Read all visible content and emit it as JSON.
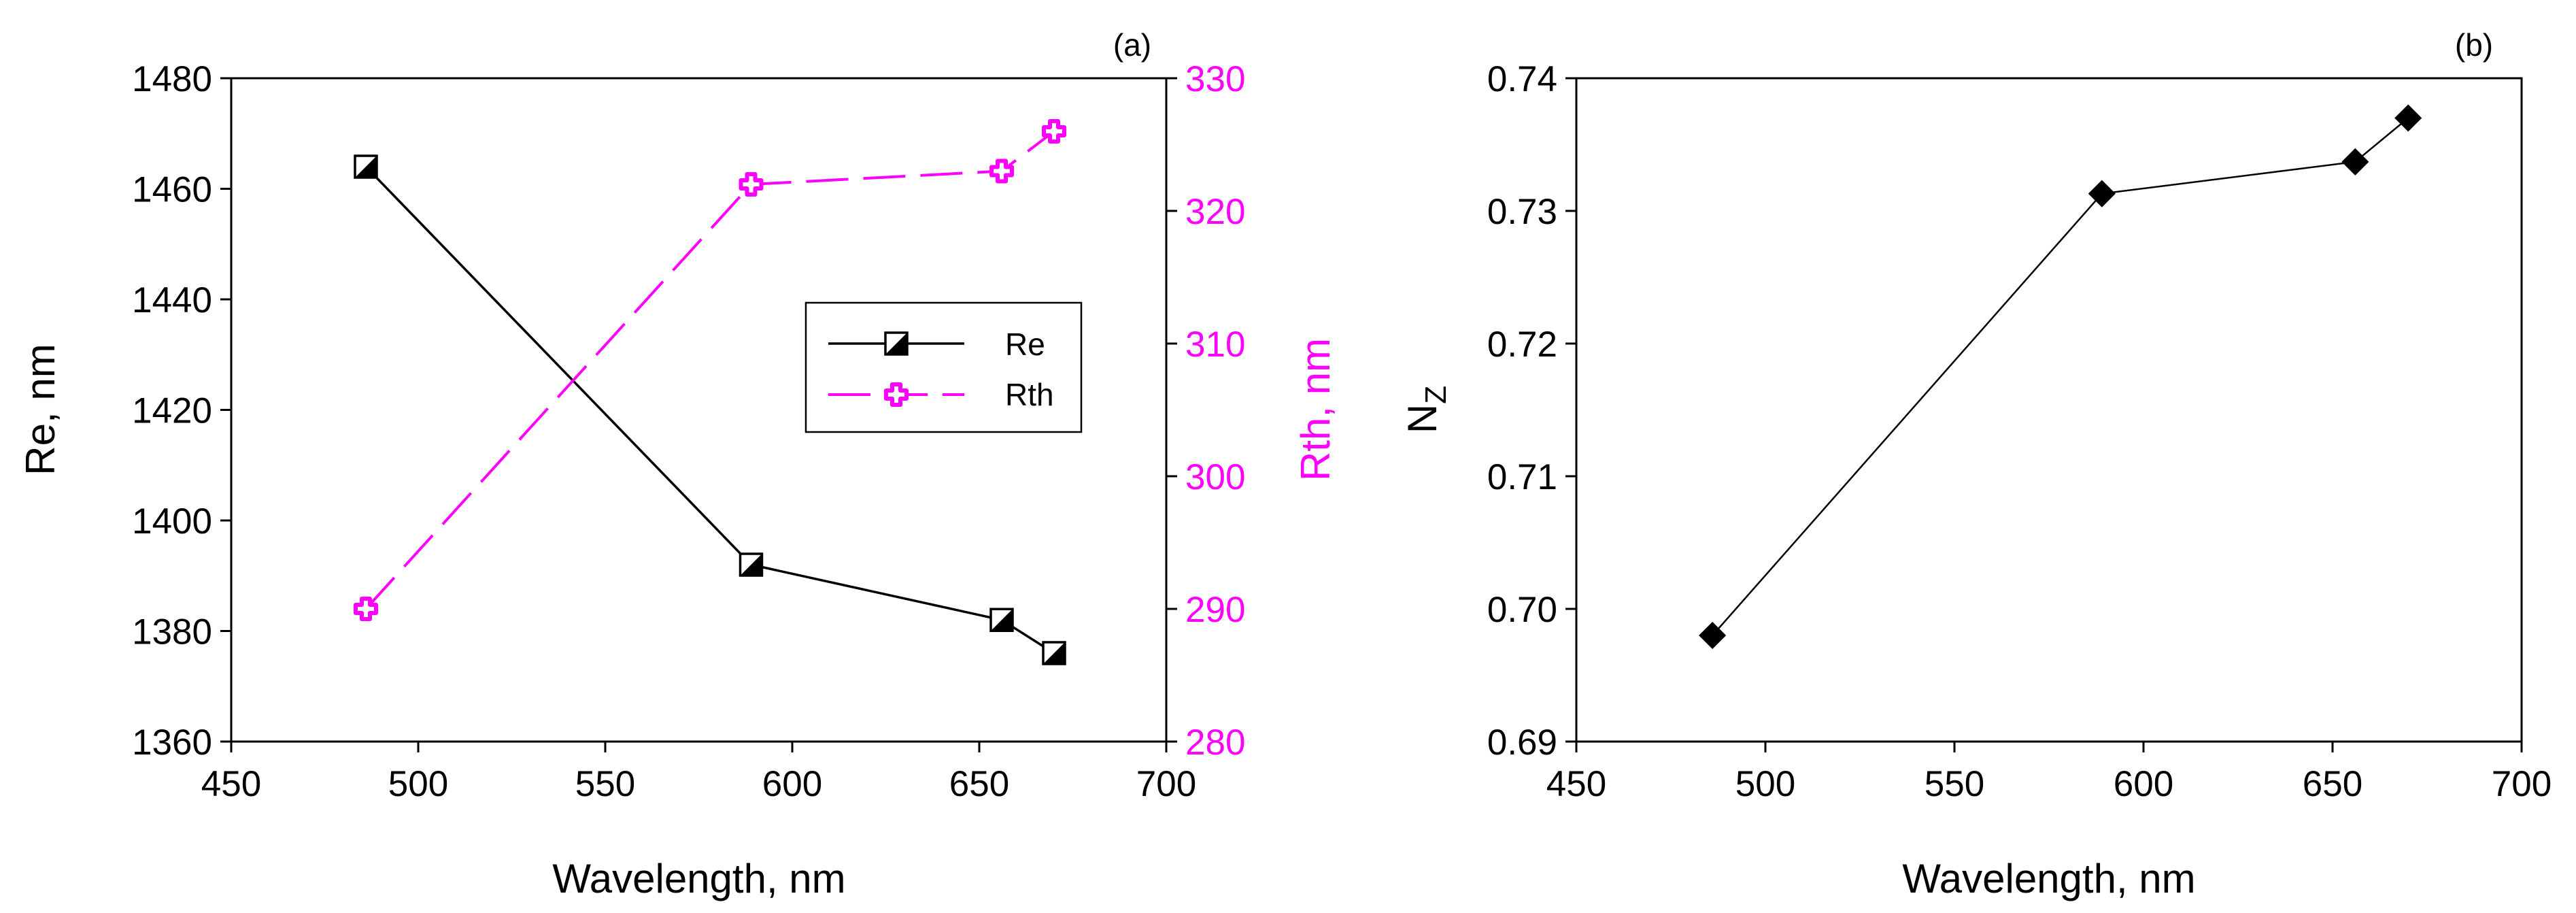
{
  "colors": {
    "axis": "#000000",
    "series_re": "#000000",
    "series_rth": "#FF00FF"
  },
  "chart_data": [
    {
      "panel_label": "(a)",
      "type": "line",
      "title": "",
      "xlabel": "Wavelength, nm",
      "ylabel": "Re, nm",
      "y2label": "Rth, nm",
      "xlim": [
        450,
        700
      ],
      "ylim": [
        1360,
        1480
      ],
      "y2lim": [
        280,
        330
      ],
      "xticks": [
        "450",
        "500",
        "550",
        "600",
        "650",
        "700"
      ],
      "yticks": [
        "1360",
        "1380",
        "1400",
        "1420",
        "1440",
        "1460",
        "1480"
      ],
      "y2ticks": [
        "280",
        "290",
        "300",
        "310",
        "320",
        "330"
      ],
      "legend_position": "center-right",
      "series": [
        {
          "name": "Re",
          "axis": "left",
          "line_style": "solid",
          "marker": "half-filled-square",
          "x": [
            486,
            589,
            656,
            670
          ],
          "y": [
            1464,
            1392,
            1382,
            1376
          ]
        },
        {
          "name": "Rth",
          "axis": "right",
          "line_style": "dashed",
          "marker": "open-cross",
          "x": [
            486,
            589,
            656,
            670
          ],
          "y": [
            290,
            322,
            323,
            326
          ]
        }
      ]
    },
    {
      "panel_label": "(b)",
      "type": "line",
      "title": "",
      "xlabel": "Wavelength, nm",
      "ylabel": "N",
      "ylabel_sub": "Z",
      "xlim": [
        450,
        700
      ],
      "ylim": [
        0.69,
        0.74
      ],
      "xticks": [
        "450",
        "500",
        "550",
        "600",
        "650",
        "700"
      ],
      "yticks": [
        "0.69",
        "0.70",
        "0.71",
        "0.72",
        "0.73",
        "0.74"
      ],
      "series": [
        {
          "name": "Nz",
          "line_style": "solid",
          "marker": "filled-diamond",
          "x": [
            486,
            589,
            656,
            670
          ],
          "y": [
            0.698,
            0.7313,
            0.7337,
            0.737
          ]
        }
      ]
    }
  ]
}
